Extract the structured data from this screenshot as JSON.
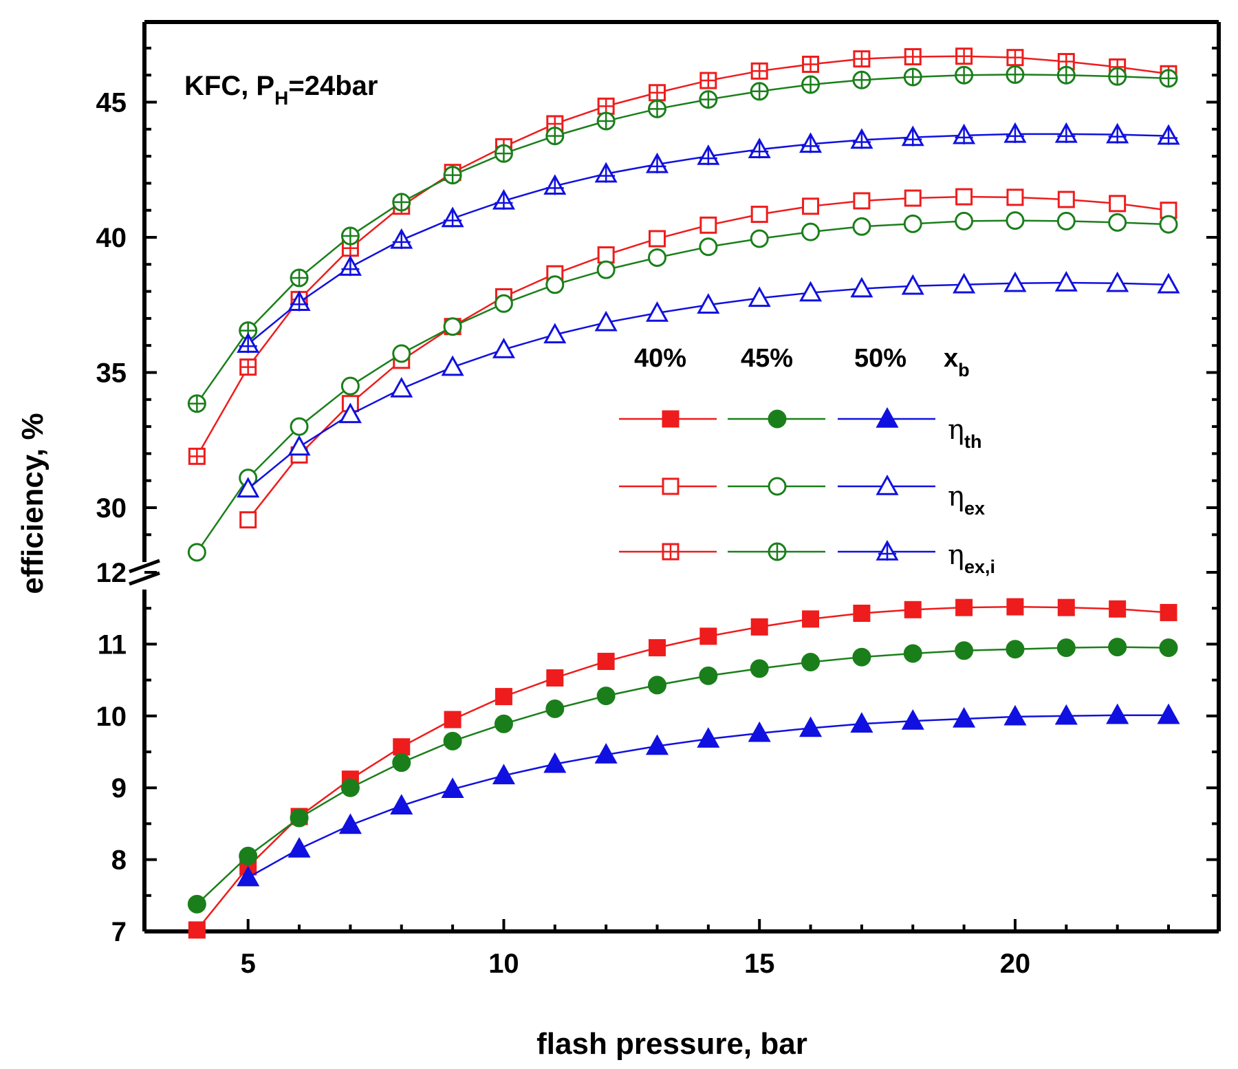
{
  "chart_data": {
    "type": "line",
    "title": "",
    "annotation": {
      "prefix": "KFC, P",
      "sub": "H",
      "suffix": "=24bar"
    },
    "xlabel": "flash pressure, bar",
    "ylabel": "efficiency, %",
    "xlim": [
      3,
      24
    ],
    "x_ticks": [
      5,
      10,
      15,
      20
    ],
    "upper_panel": {
      "ylim": [
        28.8,
        48.5
      ],
      "y_ticks": [
        30,
        35,
        40,
        45
      ]
    },
    "lower_panel": {
      "ylim": [
        7,
        12
      ],
      "y_ticks": [
        7,
        8,
        9,
        10,
        11,
        12
      ]
    },
    "axis_break": true,
    "x": [
      4,
      5,
      6,
      7,
      8,
      9,
      10,
      11,
      12,
      13,
      14,
      15,
      16,
      17,
      18,
      19,
      20,
      21,
      22,
      23
    ],
    "legend": {
      "headers": [
        "40%",
        "45%",
        "50%"
      ],
      "xb": {
        "main": "x",
        "sub": "b"
      },
      "rows": [
        {
          "eta": "η",
          "sub": "th",
          "marker": "filled"
        },
        {
          "eta": "η",
          "sub": "ex",
          "marker": "open"
        },
        {
          "eta": "η",
          "sub": "ex,i",
          "marker": "plus"
        }
      ]
    },
    "colors": {
      "40%": "#ee1c1c",
      "45%": "#1a7f1a",
      "50%": "#1010e0"
    },
    "series": [
      {
        "name": "eta_th 40%",
        "panel": "lower",
        "shape": "square",
        "style": "filled",
        "color": "#ee1c1c",
        "values": [
          7.02,
          7.9,
          8.6,
          9.12,
          9.57,
          9.95,
          10.27,
          10.53,
          10.76,
          10.95,
          11.11,
          11.24,
          11.35,
          11.43,
          11.48,
          11.51,
          11.52,
          11.51,
          11.49,
          11.44
        ]
      },
      {
        "name": "eta_th 45%",
        "panel": "lower",
        "shape": "circle",
        "style": "filled",
        "color": "#1a7f1a",
        "values": [
          7.38,
          8.05,
          8.58,
          9.0,
          9.35,
          9.65,
          9.89,
          10.1,
          10.28,
          10.43,
          10.56,
          10.66,
          10.75,
          10.82,
          10.87,
          10.91,
          10.93,
          10.95,
          10.96,
          10.95
        ]
      },
      {
        "name": "eta_th 50%",
        "panel": "lower",
        "shape": "triangle",
        "style": "filled",
        "color": "#1010e0",
        "values": [
          null,
          7.75,
          8.15,
          8.48,
          8.75,
          8.98,
          9.17,
          9.33,
          9.46,
          9.58,
          9.68,
          9.76,
          9.83,
          9.89,
          9.93,
          9.96,
          9.99,
          10.0,
          10.01,
          10.01
        ]
      },
      {
        "name": "eta_ex 40%",
        "panel": "upper",
        "shape": "square",
        "style": "open",
        "color": "#ee1c1c",
        "values": [
          null,
          29.55,
          31.95,
          33.85,
          35.45,
          36.7,
          37.8,
          38.65,
          39.35,
          39.95,
          40.45,
          40.85,
          41.15,
          41.35,
          41.45,
          41.5,
          41.48,
          41.4,
          41.25,
          41.0
        ]
      },
      {
        "name": "eta_ex 45%",
        "panel": "upper",
        "shape": "circle",
        "style": "open",
        "color": "#1a7f1a",
        "values": [
          28.35,
          31.1,
          33.0,
          34.5,
          35.7,
          36.7,
          37.55,
          38.25,
          38.8,
          39.25,
          39.65,
          39.95,
          40.2,
          40.4,
          40.5,
          40.6,
          40.62,
          40.6,
          40.55,
          40.48
        ]
      },
      {
        "name": "eta_ex 50%",
        "panel": "upper",
        "shape": "triangle",
        "style": "open",
        "color": "#1010e0",
        "values": [
          null,
          30.7,
          32.25,
          33.45,
          34.4,
          35.2,
          35.85,
          36.4,
          36.85,
          37.2,
          37.5,
          37.75,
          37.95,
          38.1,
          38.2,
          38.25,
          38.3,
          38.32,
          38.3,
          38.25
        ]
      },
      {
        "name": "eta_ex,i 40%",
        "panel": "upper",
        "shape": "square",
        "style": "plus",
        "color": "#ee1c1c",
        "values": [
          31.9,
          35.2,
          37.7,
          39.6,
          41.15,
          42.4,
          43.35,
          44.2,
          44.85,
          45.35,
          45.8,
          46.15,
          46.4,
          46.6,
          46.68,
          46.7,
          46.65,
          46.5,
          46.3,
          46.05
        ]
      },
      {
        "name": "eta_ex,i 45%",
        "panel": "upper",
        "shape": "circle",
        "style": "plus",
        "color": "#1a7f1a",
        "values": [
          33.85,
          36.55,
          38.5,
          40.05,
          41.3,
          42.3,
          43.1,
          43.75,
          44.3,
          44.75,
          45.1,
          45.4,
          45.65,
          45.82,
          45.93,
          46.0,
          46.02,
          46.0,
          45.95,
          45.88
        ]
      },
      {
        "name": "eta_ex,i 50%",
        "panel": "upper",
        "shape": "triangle",
        "style": "plus",
        "color": "#1010e0",
        "values": [
          null,
          36.05,
          37.6,
          38.9,
          39.9,
          40.7,
          41.35,
          41.9,
          42.35,
          42.7,
          43.0,
          43.25,
          43.45,
          43.6,
          43.7,
          43.77,
          43.82,
          43.82,
          43.8,
          43.75
        ]
      }
    ]
  }
}
